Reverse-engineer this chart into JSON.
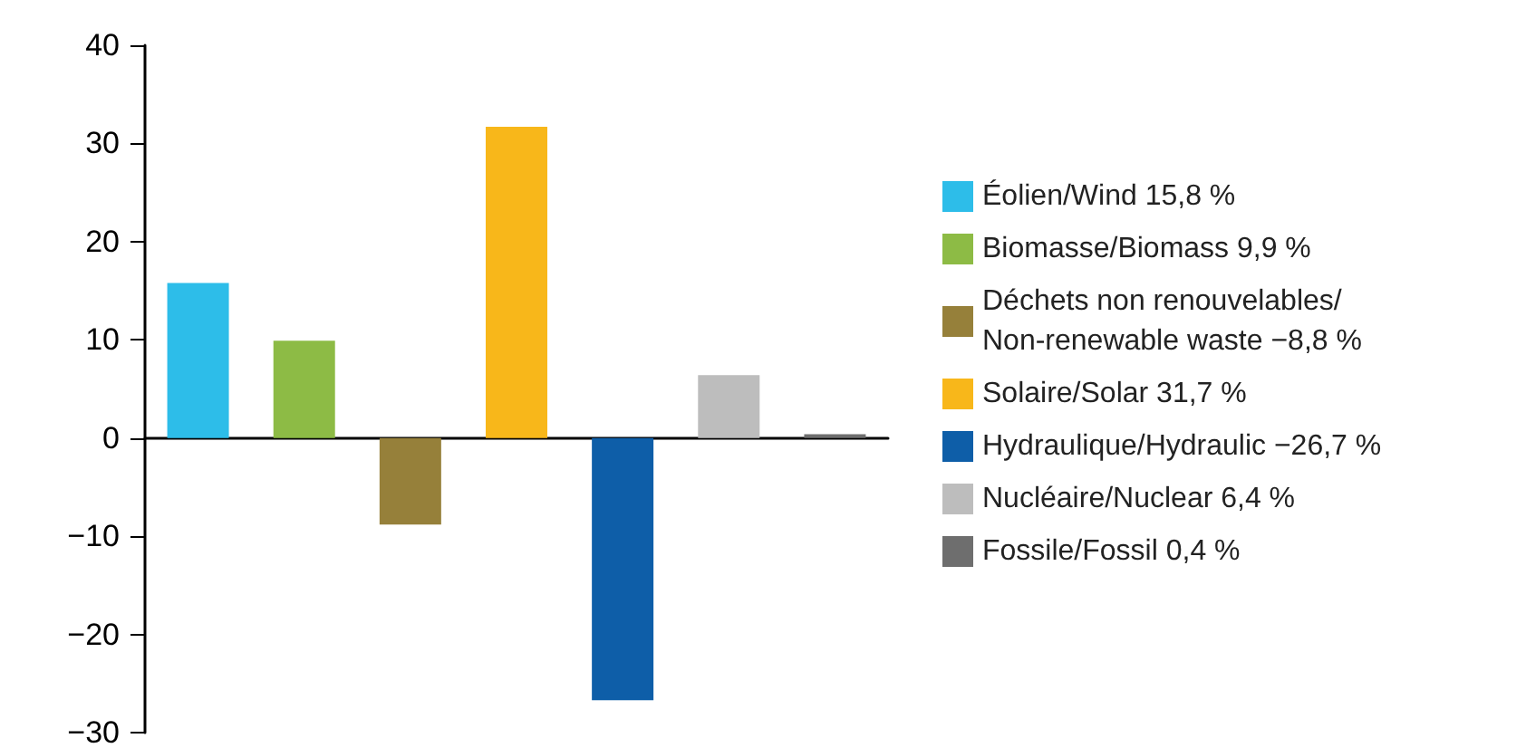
{
  "chart_data": {
    "type": "bar",
    "categories": [
      null,
      null,
      null,
      null,
      null,
      null,
      null
    ],
    "series": [
      {
        "name": "Éolien/Wind 15,8 %",
        "color": "#2dbde9",
        "values": [
          15.8,
          null,
          null,
          null,
          null,
          null,
          null
        ]
      },
      {
        "name": "Biomasse/Biomass 9,9 %",
        "color": "#8dbb45",
        "values": [
          null,
          9.9,
          null,
          null,
          null,
          null,
          null
        ]
      },
      {
        "name": "Déchets non renouvelables/ Non-renewable waste −8,8 %",
        "color": "#96803a",
        "values": [
          null,
          null,
          -8.8,
          null,
          null,
          null,
          null
        ]
      },
      {
        "name": "Solaire/Solar 31,7 %",
        "color": "#f8b71a",
        "values": [
          null,
          null,
          null,
          31.7,
          null,
          null,
          null
        ]
      },
      {
        "name": "Hydraulique/Hydraulic −26,7 %",
        "color": "#0e5ea8",
        "values": [
          null,
          null,
          null,
          null,
          -26.7,
          null,
          null
        ]
      },
      {
        "name": "Nucléaire/Nuclear 6,4 %",
        "color": "#bdbdbd",
        "values": [
          null,
          null,
          null,
          null,
          null,
          6.4,
          null
        ]
      },
      {
        "name": "Fossile/Fossil 0,4 %",
        "color": "#6e6e6e",
        "values": [
          null,
          null,
          null,
          null,
          null,
          null,
          0.4
        ]
      }
    ],
    "ylim": [
      -30,
      40
    ],
    "yticks": [
      {
        "value": -30,
        "label": "−30"
      },
      {
        "value": -20,
        "label": "−20"
      },
      {
        "value": -10,
        "label": "−10"
      },
      0,
      10,
      20,
      30,
      40
    ],
    "legend": "right",
    "tick_labels": "y"
  }
}
